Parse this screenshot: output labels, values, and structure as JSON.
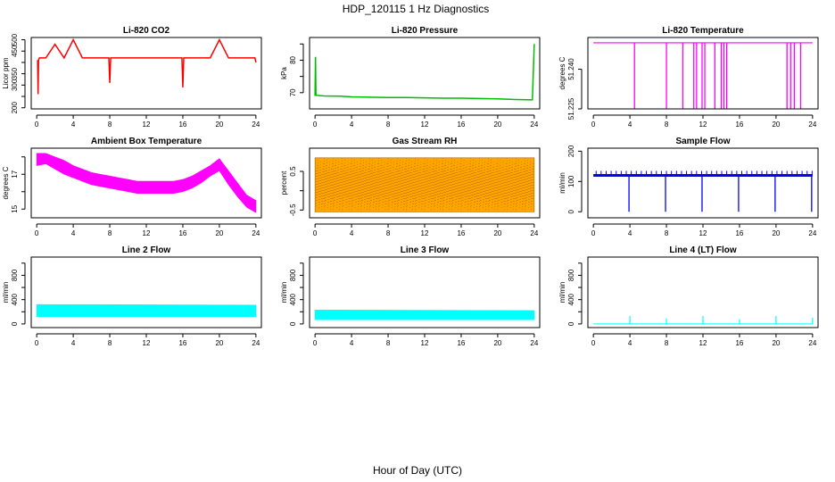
{
  "figure": {
    "title": "HDP_120115  1 Hz Diagnostics",
    "xlabel": "Hour of Day (UTC)"
  },
  "chart_data": [
    {
      "type": "line",
      "title": "Li-820 CO2",
      "ylabel": "Licor ppm",
      "color": "#ff0000",
      "xlim": [
        -0.6,
        24.6
      ],
      "ylim": [
        195,
        510
      ],
      "xticks": [
        0,
        4,
        8,
        12,
        16,
        20,
        24
      ],
      "yticks": [
        200,
        250,
        300,
        350,
        400,
        450,
        500
      ],
      "ytick_labels": [
        "200",
        "",
        "300",
        "350",
        "",
        "450",
        "500"
      ],
      "x": [
        0.1,
        0.15,
        0.2,
        0.3,
        1,
        2,
        3,
        4,
        5,
        6,
        7,
        7.9,
        8,
        8.1,
        9,
        10,
        11,
        12,
        13,
        14,
        15,
        15.9,
        16,
        16.1,
        17,
        18,
        19,
        20,
        21,
        22,
        23,
        23.9,
        24
      ],
      "values": [
        410,
        260,
        410,
        420,
        420,
        480,
        420,
        500,
        420,
        420,
        420,
        420,
        310,
        420,
        420,
        420,
        420,
        420,
        420,
        420,
        420,
        420,
        290,
        420,
        420,
        420,
        420,
        500,
        420,
        420,
        420,
        420,
        400
      ]
    },
    {
      "type": "line",
      "title": "Li-820 Pressure",
      "ylabel": "kPa",
      "color": "#00bb00",
      "xlim": [
        -0.6,
        24.6
      ],
      "ylim": [
        65,
        87
      ],
      "xticks": [
        0,
        4,
        8,
        12,
        16,
        20,
        24
      ],
      "yticks": [
        70,
        75,
        80,
        85
      ],
      "ytick_labels": [
        "70",
        "",
        "80",
        ""
      ],
      "x": [
        0,
        0.05,
        0.1,
        1,
        3,
        4,
        6,
        8,
        10,
        12,
        14,
        16,
        18,
        20,
        22,
        23.8,
        24
      ],
      "values": [
        69,
        81,
        69.2,
        69.0,
        68.9,
        68.7,
        68.6,
        68.5,
        68.5,
        68.4,
        68.3,
        68.3,
        68.2,
        68.1,
        67.9,
        67.8,
        85
      ]
    },
    {
      "type": "line",
      "title": "Li-820 Temperature",
      "ylabel": "degrees C",
      "color": "#ff00ff",
      "xlim": [
        -0.6,
        24.6
      ],
      "ylim": [
        51.225,
        51.252
      ],
      "xticks": [
        0,
        4,
        8,
        12,
        16,
        20,
        24
      ],
      "yticks": [
        51.225,
        51.24
      ],
      "ytick_labels": [
        "51.225",
        "51.240"
      ],
      "baseline": 51.25,
      "dips": [
        4.5,
        8.0,
        9.8,
        11.0,
        11.3,
        11.9,
        12.2,
        13.3,
        14.0,
        14.3,
        14.6,
        21.2,
        21.6,
        22.0,
        22.7
      ]
    },
    {
      "type": "area",
      "title": "Ambient Box Temperature",
      "ylabel": "degrees C",
      "color": "#ff00ff",
      "xlim": [
        -0.6,
        24.6
      ],
      "ylim": [
        14.5,
        18.5
      ],
      "xticks": [
        0,
        4,
        8,
        12,
        16,
        20,
        24
      ],
      "yticks": [
        15,
        16,
        17,
        18
      ],
      "ytick_labels": [
        "15",
        "",
        "17",
        ""
      ],
      "x": [
        0,
        1,
        2,
        3,
        4,
        5,
        6,
        7,
        8,
        9,
        10,
        11,
        12,
        13,
        14,
        15,
        16,
        17,
        18,
        19,
        20,
        21,
        22,
        23,
        24
      ],
      "upper": [
        18.2,
        18.2,
        18.0,
        17.8,
        17.5,
        17.3,
        17.1,
        17.0,
        16.9,
        16.8,
        16.7,
        16.6,
        16.6,
        16.6,
        16.6,
        16.6,
        16.7,
        16.9,
        17.2,
        17.5,
        17.9,
        17.2,
        16.5,
        15.8,
        15.5
      ],
      "lower": [
        17.5,
        17.6,
        17.3,
        17.0,
        16.8,
        16.6,
        16.4,
        16.3,
        16.2,
        16.1,
        16.0,
        15.9,
        15.9,
        15.9,
        15.9,
        15.9,
        16.0,
        16.2,
        16.5,
        16.9,
        17.2,
        16.4,
        15.7,
        15.1,
        14.8
      ]
    },
    {
      "type": "area",
      "title": "Gas Stream RH",
      "ylabel": "percent",
      "color": "#ffa500",
      "color2": "#aa6600",
      "xlim": [
        -0.6,
        24.6
      ],
      "ylim": [
        -0.7,
        1.1
      ],
      "xticks": [
        0,
        4,
        8,
        12,
        16,
        20,
        24
      ],
      "yticks": [
        -0.5,
        0,
        0.5
      ],
      "ytick_labels": [
        "-0.5",
        "",
        "0.5"
      ],
      "x": [
        0,
        24
      ],
      "upper": [
        0.85,
        0.85
      ],
      "lower": [
        -0.55,
        -0.55
      ]
    },
    {
      "type": "line",
      "title": "Sample Flow",
      "ylabel": "ml/min",
      "color": "#0000ff",
      "xlim": [
        -0.6,
        24.6
      ],
      "ylim": [
        -20,
        210
      ],
      "xticks": [
        0,
        4,
        8,
        12,
        16,
        20,
        24
      ],
      "yticks": [
        0,
        100,
        200
      ],
      "ytick_labels": [
        "0",
        "100",
        "200"
      ],
      "baseline": 120,
      "dips_to": 0,
      "dips": [
        3.9,
        7.9,
        11.9,
        15.9,
        19.9,
        23.9
      ]
    },
    {
      "type": "area",
      "title": "Line 2 Flow",
      "ylabel": "ml/min",
      "color": "#00ffff",
      "xlim": [
        -0.6,
        24.6
      ],
      "ylim": [
        -60,
        1100
      ],
      "xticks": [
        0,
        4,
        8,
        12,
        16,
        20,
        24
      ],
      "yticks": [
        0,
        200,
        400,
        600,
        800,
        1000
      ],
      "ytick_labels": [
        "0",
        "",
        "400",
        "",
        "800",
        ""
      ],
      "x": [
        0,
        24
      ],
      "upper": [
        320,
        310
      ],
      "lower": [
        120,
        120
      ]
    },
    {
      "type": "area",
      "title": "Line 3 Flow",
      "ylabel": "ml/min",
      "color": "#00ffff",
      "xlim": [
        -0.6,
        24.6
      ],
      "ylim": [
        -60,
        1100
      ],
      "xticks": [
        0,
        4,
        8,
        12,
        16,
        20,
        24
      ],
      "yticks": [
        0,
        200,
        400,
        600,
        800,
        1000
      ],
      "ytick_labels": [
        "0",
        "",
        "400",
        "",
        "800",
        ""
      ],
      "x": [
        0,
        24
      ],
      "upper": [
        230,
        220
      ],
      "lower": [
        70,
        70
      ]
    },
    {
      "type": "line",
      "title": "Line 4 (LT) Flow",
      "ylabel": "ml/min",
      "color": "#00ffff",
      "xlim": [
        -0.6,
        24.6
      ],
      "ylim": [
        -60,
        1100
      ],
      "xticks": [
        0,
        4,
        8,
        12,
        16,
        20,
        24
      ],
      "yticks": [
        0,
        200,
        400,
        600,
        800,
        1000
      ],
      "ytick_labels": [
        "0",
        "",
        "400",
        "",
        "800",
        ""
      ],
      "baseline": 0,
      "spikes": [
        [
          4,
          130
        ],
        [
          8,
          90
        ],
        [
          12,
          130
        ],
        [
          16,
          80
        ],
        [
          20,
          130
        ],
        [
          24,
          100
        ]
      ]
    }
  ]
}
